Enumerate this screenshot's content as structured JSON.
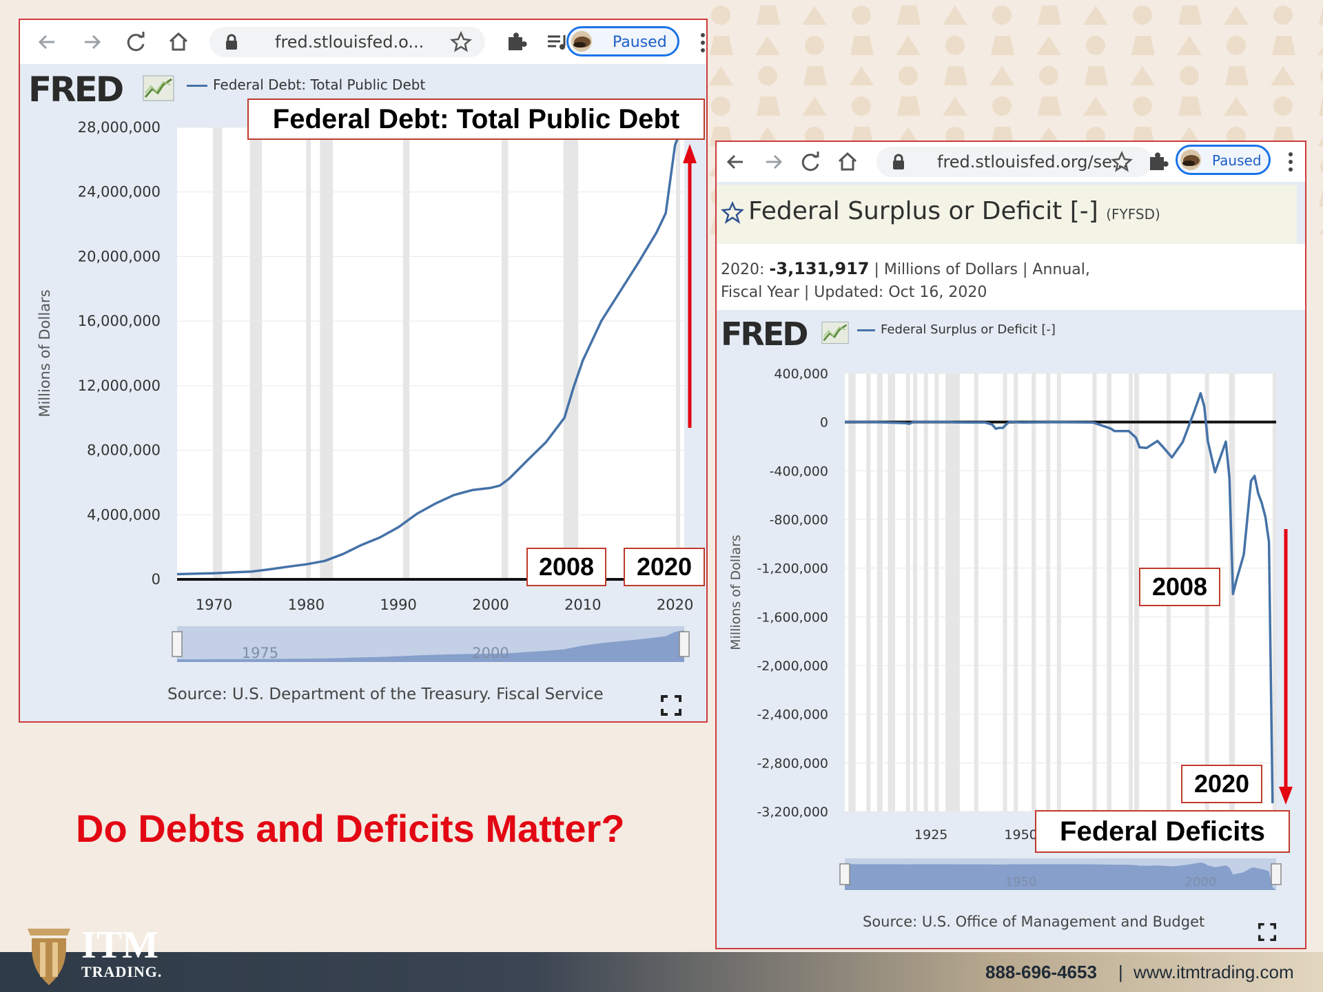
{
  "left": {
    "url": "fred.stlouisfed.o...",
    "paused": "Paused",
    "logo": "FRED",
    "legend": "Federal Debt: Total Public Debt",
    "annotation_title": "Federal Debt: Total Public Debt",
    "annotation_2008": "2008",
    "annotation_2020": "2020",
    "source": "Source: U.S. Department of the Treasury. Fiscal Service"
  },
  "right": {
    "url": "fred.stlouisfed.org/se...",
    "paused": "Paused",
    "title": "Federal Surplus or Deficit [-]",
    "code": "(FYFSD)",
    "line1_prefix": "2020: ",
    "line1_value": "-3,131,917",
    "line1_rest": " | Millions of Dollars | Annual,",
    "line2": "Fiscal Year | Updated: Oct 16, 2020",
    "logo": "FRED",
    "legend": "Federal Surplus or Deficit [-]",
    "annotation_2008": "2008",
    "annotation_2020": "2020",
    "annotation_label": "Federal Deficits",
    "source": "Source: U.S. Office of Management and Budget"
  },
  "headline": "Do Debts and Deficits Matter?",
  "footer": {
    "brand_top": "ITM",
    "brand_bottom": "TRADING.",
    "phone": "888-696-4653",
    "separator": "|",
    "website": "www.itmtrading.com"
  },
  "colors": {
    "series": "#4572a7",
    "annotation": "#e30613",
    "recession": "#e6e6e6"
  },
  "icons": [
    "back-arrow-icon",
    "forward-arrow-icon",
    "reload-icon",
    "home-icon",
    "lock-icon",
    "star-icon",
    "puzzle-icon",
    "media-queue-icon",
    "kebab-menu-icon",
    "fullscreen-icon"
  ],
  "chart_data": [
    {
      "type": "line",
      "title": "",
      "ylabel": "Millions of Dollars",
      "xlim": [
        1966,
        2021
      ],
      "ylim": [
        0,
        28000000
      ],
      "y_ticks": [
        0,
        4000000,
        8000000,
        12000000,
        16000000,
        20000000,
        24000000,
        28000000
      ],
      "y_tick_labels": [
        "0",
        "4,000,000",
        "8,000,000",
        "12,000,000",
        "16,000,000",
        "20,000,000",
        "24,000,000",
        "28,000,000"
      ],
      "x_ticks": [
        1970,
        1980,
        1990,
        2000,
        2010,
        2020
      ],
      "x_tick_labels": [
        "1970",
        "1980",
        "1990",
        "2000",
        "2010",
        "2020"
      ],
      "navigator_labels": [
        "1975",
        "2000"
      ],
      "recessions": [
        [
          1969.9,
          1970.9
        ],
        [
          1973.9,
          1975.2
        ],
        [
          1980.0,
          1980.5
        ],
        [
          1981.5,
          1982.9
        ],
        [
          1990.5,
          1991.2
        ],
        [
          2001.2,
          2001.9
        ],
        [
          2007.9,
          2009.5
        ],
        [
          2020.1,
          2020.4
        ]
      ],
      "series": [
        {
          "name": "Federal Debt: Total Public Debt",
          "x": [
            1966,
            1968,
            1970,
            1972,
            1974,
            1976,
            1978,
            1980,
            1982,
            1984,
            1986,
            1988,
            1990,
            1992,
            1994,
            1996,
            1998,
            2000,
            2001,
            2002,
            2004,
            2006,
            2008,
            2009,
            2010,
            2012,
            2014,
            2016,
            2018,
            2019,
            2020,
            2021
          ],
          "y": [
            320000,
            350000,
            380000,
            430000,
            480000,
            620000,
            780000,
            930000,
            1140000,
            1570000,
            2130000,
            2600000,
            3230000,
            4060000,
            4690000,
            5220000,
            5530000,
            5670000,
            5810000,
            6230000,
            7380000,
            8500000,
            10000000,
            11900000,
            13560000,
            16000000,
            17800000,
            19600000,
            21500000,
            22700000,
            26900000,
            28400000
          ]
        }
      ]
    },
    {
      "type": "line",
      "title": "Federal Surplus or Deficit [-]",
      "ylabel": "Millions of Dollars",
      "xlim": [
        1901,
        2021
      ],
      "ylim": [
        -3200000,
        400000
      ],
      "y_ticks": [
        400000,
        0,
        -400000,
        -800000,
        -1200000,
        -1600000,
        -2000000,
        -2400000,
        -2800000,
        -3200000
      ],
      "y_tick_labels": [
        "400,000",
        "0",
        "-400,000",
        "-800,000",
        "-1,200,000",
        "-1,600,000",
        "-2,000,000",
        "-2,400,000",
        "-2,800,000",
        "-3,200,000"
      ],
      "x_ticks": [
        1925,
        1950
      ],
      "x_tick_labels": [
        "1925",
        "1950"
      ],
      "navigator_labels": [
        "1950",
        "2000"
      ],
      "series": [
        {
          "name": "Federal Surplus or Deficit [-]",
          "x": [
            1901,
            1910,
            1918,
            1919,
            1920,
            1930,
            1932,
            1935,
            1940,
            1942,
            1943,
            1944,
            1945,
            1946,
            1947,
            1950,
            1960,
            1970,
            1975,
            1976,
            1980,
            1982,
            1983,
            1985,
            1988,
            1990,
            1992,
            1995,
            1998,
            2000,
            2001,
            2002,
            2004,
            2007,
            2008,
            2009,
            2010,
            2012,
            2014,
            2015,
            2016,
            2017,
            2018,
            2019,
            2020
          ],
          "y": [
            1000,
            -1000,
            -9000,
            -13500,
            300,
            700,
            -2700,
            -2800,
            -2900,
            -20500,
            -54600,
            -47600,
            -47600,
            -15900,
            4000,
            -3100,
            300,
            -2800,
            -53200,
            -73700,
            -73800,
            -128000,
            -207800,
            -212300,
            -155200,
            -221000,
            -290300,
            -164000,
            69300,
            236200,
            128200,
            -157800,
            -412700,
            -160700,
            -458600,
            -1412700,
            -1294400,
            -1087000,
            -484600,
            -442000,
            -584700,
            -665400,
            -779100,
            -984400,
            -3131917
          ]
        }
      ]
    }
  ]
}
